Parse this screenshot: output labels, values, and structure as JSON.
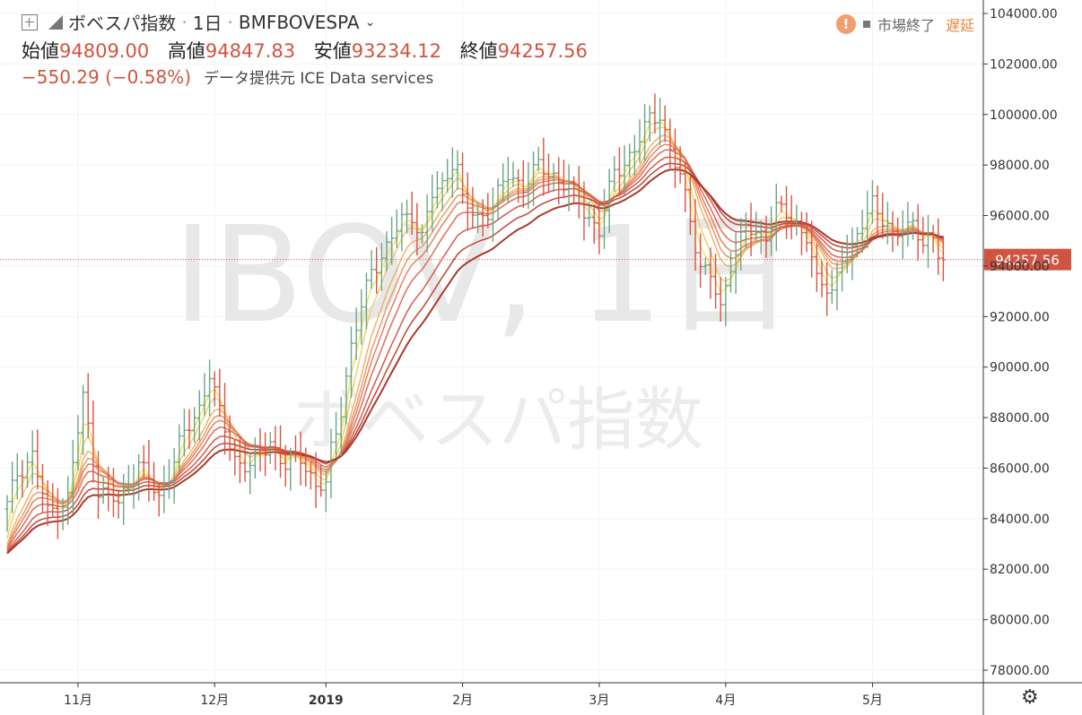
{
  "header": {
    "symbol_title": "ボベスパ指数",
    "sep1": "·",
    "interval": "1日",
    "sep2": "·",
    "exchange": "BMFBOVESPA",
    "open_label": "始値",
    "open_value": "94809.00",
    "high_label": "高値",
    "high_value": "94847.83",
    "low_label": "安値",
    "low_value": "93234.12",
    "close_label": "終値",
    "close_value": "94257.56",
    "change": "−550.29 (−0.58%)",
    "source": "データ提供元 ICE Data services"
  },
  "status": {
    "warning_glyph": "!",
    "market_status": "市場終了",
    "delay": "遅延"
  },
  "watermark": {
    "ticker": "IBOV, 1日",
    "name": "ボベスパ指数"
  },
  "colors": {
    "up": "#6ba583",
    "down": "#d75442",
    "last_price_bg": "#cf5540",
    "ribbon": [
      "#f5e66a",
      "#f2cf6e",
      "#eeb46d",
      "#e99a68",
      "#e48262",
      "#de6d5a",
      "#d45a4c",
      "#c1453a",
      "#a83a2c"
    ]
  },
  "chart_data": {
    "type": "candlestick",
    "title": "ボベスパ指数",
    "ylim": [
      77600,
      104600
    ],
    "y_ticks": [
      "104000.00",
      "102000.00",
      "100000.00",
      "98000.00",
      "96000.00",
      "94000.00",
      "92000.00",
      "90000.00",
      "88000.00",
      "86000.00",
      "84000.00",
      "82000.00",
      "80000.00",
      "78000.00"
    ],
    "x_tick_labels": [
      "11月",
      "12月",
      "2019",
      "2月",
      "3月",
      "4月",
      "5月"
    ],
    "x_tick_bar_index": [
      14,
      41,
      63,
      90,
      117,
      142,
      171
    ],
    "last_price": 94257.56,
    "last_price_label": "94257.56",
    "bar_count": 186,
    "close_waypoints": [
      [
        0,
        84500
      ],
      [
        2,
        85800
      ],
      [
        5,
        86500
      ],
      [
        8,
        84200
      ],
      [
        12,
        84800
      ],
      [
        15,
        88800
      ],
      [
        18,
        85200
      ],
      [
        22,
        84600
      ],
      [
        26,
        86200
      ],
      [
        30,
        84800
      ],
      [
        34,
        86900
      ],
      [
        38,
        88400
      ],
      [
        40,
        89800
      ],
      [
        42,
        88100
      ],
      [
        45,
        86400
      ],
      [
        48,
        86000
      ],
      [
        52,
        87100
      ],
      [
        55,
        86000
      ],
      [
        58,
        86500
      ],
      [
        61,
        85300
      ],
      [
        63,
        85200
      ],
      [
        64,
        86700
      ],
      [
        66,
        88400
      ],
      [
        68,
        90800
      ],
      [
        70,
        92300
      ],
      [
        72,
        93900
      ],
      [
        75,
        94700
      ],
      [
        78,
        95800
      ],
      [
        80,
        96100
      ],
      [
        82,
        95100
      ],
      [
        84,
        96800
      ],
      [
        86,
        97200
      ],
      [
        88,
        98200
      ],
      [
        89,
        97900
      ],
      [
        90,
        96500
      ],
      [
        93,
        95900
      ],
      [
        96,
        96400
      ],
      [
        99,
        97600
      ],
      [
        102,
        97200
      ],
      [
        105,
        97900
      ],
      [
        108,
        97600
      ],
      [
        111,
        97100
      ],
      [
        114,
        96200
      ],
      [
        117,
        95400
      ],
      [
        120,
        97700
      ],
      [
        124,
        98600
      ],
      [
        127,
        99800
      ],
      [
        129,
        100100
      ],
      [
        131,
        98500
      ],
      [
        133,
        97500
      ],
      [
        135,
        95900
      ],
      [
        137,
        94000
      ],
      [
        139,
        93600
      ],
      [
        141,
        92200
      ],
      [
        143,
        94200
      ],
      [
        146,
        95500
      ],
      [
        148,
        95200
      ],
      [
        150,
        95300
      ],
      [
        152,
        96300
      ],
      [
        155,
        95800
      ],
      [
        158,
        95300
      ],
      [
        160,
        93300
      ],
      [
        163,
        93000
      ],
      [
        165,
        94500
      ],
      [
        167,
        94400
      ],
      [
        169,
        95700
      ],
      [
        171,
        96700
      ],
      [
        173,
        95800
      ],
      [
        175,
        95000
      ],
      [
        177,
        95600
      ],
      [
        179,
        95800
      ],
      [
        181,
        94700
      ],
      [
        183,
        95100
      ],
      [
        185,
        94257.56
      ]
    ],
    "ema_periods": [
      3,
      5,
      8,
      10,
      12,
      15,
      20,
      25,
      30
    ]
  }
}
